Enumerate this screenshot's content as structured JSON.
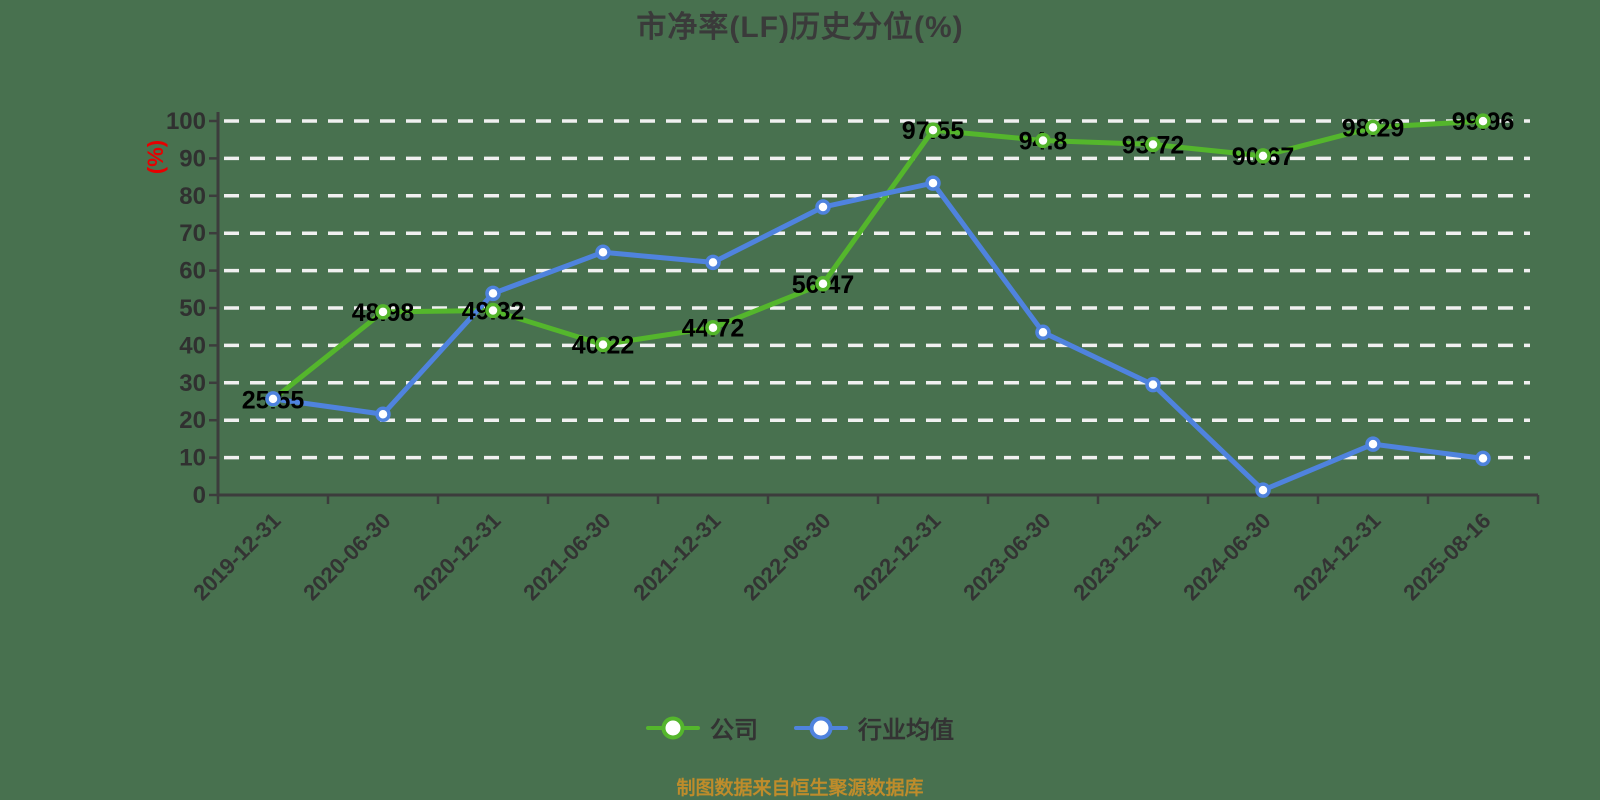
{
  "title": "市净率(LF)历史分位(%)",
  "footer": "制图数据来自恒生聚源数据库",
  "legend": [
    {
      "label": "公司",
      "color": "#54B62C"
    },
    {
      "label": "行业均值",
      "color": "#4F83DE"
    }
  ],
  "colors": {
    "background": "#48714F",
    "grid": "#F0F0F0",
    "axis": "#3C3C3C",
    "tick_label": "#303030",
    "x_label": "#333333",
    "data_label": "#000000",
    "marker_fill": "#FFFFFF",
    "y_name": "#E60000"
  },
  "chart_data": {
    "type": "line",
    "title": "市净率(LF)历史分位(%)",
    "xlabel": "",
    "ylabel": "(%)",
    "ylim": [
      0,
      100
    ],
    "ytick_step": 10,
    "grid": "horizontal-dashed",
    "legend_position": "bottom",
    "categories": [
      "2019-12-31",
      "2020-06-30",
      "2020-12-31",
      "2021-06-30",
      "2021-12-31",
      "2022-06-30",
      "2022-12-31",
      "2023-06-30",
      "2023-12-31",
      "2024-06-30",
      "2024-12-31",
      "2025-08-16"
    ],
    "series": [
      {
        "name": "公司",
        "color": "#54B62C",
        "point_labels": true,
        "values": [
          25.55,
          48.98,
          49.32,
          40.22,
          44.72,
          56.47,
          97.55,
          94.8,
          93.72,
          90.67,
          98.29,
          99.96
        ]
      },
      {
        "name": "行业均值",
        "color": "#4F83DE",
        "point_labels": false,
        "values": [
          25.7,
          21.6,
          53.9,
          64.9,
          62.2,
          77,
          83.4,
          43.5,
          29.5,
          1.3,
          13.6,
          9.8
        ]
      }
    ]
  }
}
